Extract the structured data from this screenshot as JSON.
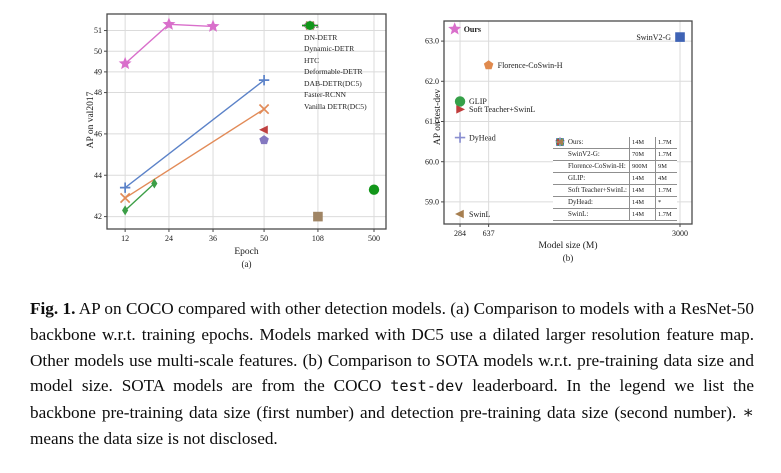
{
  "caption": {
    "label": "Fig. 1.",
    "part1": " AP on COCO compared with other detection models. (a) Comparison to models with a ResNet-50 backbone w.r.t. training epochs. Models marked with DC5 use a dilated larger resolution feature map. Other models use multi-scale features. (b) Comparison to SOTA models w.r.t. pre-training data size and model size. SOTA models are from the COCO ",
    "mono": "test-dev",
    "part2": " leaderboard. In the legend we list the backbone pre-training data size (first number) and detection pre-training data size (second number). ∗ means the data size is not disclosed."
  },
  "chart_data": [
    {
      "type": "line",
      "subplot_label": "(a)",
      "xlabel": "Epoch",
      "ylabel": "AP on val2017",
      "x_ticks": [
        12,
        24,
        36,
        50,
        108,
        500
      ],
      "y_ticks": [
        42,
        44,
        46,
        48,
        49,
        50,
        51
      ],
      "ylim": [
        41.4,
        51.8
      ],
      "grid": true,
      "legend_position": "upper-right",
      "series": [
        {
          "name": "Ours",
          "marker": "star",
          "color": "#D96FCB",
          "points": [
            [
              12,
              49.4
            ],
            [
              24,
              51.3
            ],
            [
              36,
              51.2
            ]
          ]
        },
        {
          "name": "DN-DETR",
          "marker": "plus",
          "color": "#5B82C8",
          "points": [
            [
              12,
              43.4
            ],
            [
              50,
              48.6
            ]
          ]
        },
        {
          "name": "Dynamic-DETR",
          "marker": "x",
          "color": "#E28B58",
          "points": [
            [
              12,
              42.9
            ],
            [
              50,
              47.2
            ]
          ]
        },
        {
          "name": "HTC",
          "marker": "diamond",
          "color": "#3C9E46",
          "points": [
            [
              12,
              42.3
            ],
            [
              20,
              43.6
            ]
          ]
        },
        {
          "name": "Deformable-DETR",
          "marker": "triangle-left",
          "color": "#BF4040",
          "points": [
            [
              50,
              46.2
            ]
          ]
        },
        {
          "name": "DAB-DETR(DC5)",
          "marker": "pentagon",
          "color": "#8478C0",
          "points": [
            [
              50,
              45.7
            ]
          ]
        },
        {
          "name": "Faster-RCNN",
          "marker": "square",
          "color": "#A08565",
          "points": [
            [
              108,
              42.0
            ]
          ]
        },
        {
          "name": "Vanilla DETR(DC5)",
          "marker": "circle",
          "color": "#12961A",
          "points": [
            [
              500,
              43.3
            ]
          ]
        }
      ]
    },
    {
      "type": "scatter",
      "subplot_label": "(b)",
      "xlabel": "Model size (M)",
      "ylabel": "AP on test-dev",
      "x_ticks": [
        {
          "label": "284",
          "v": 284
        },
        {
          "label": "637",
          "v": 637
        },
        {
          "label": "3000",
          "v": 3000
        }
      ],
      "xlim": [
        86,
        3148
      ],
      "y_ticks": [
        {
          "label": "59.0",
          "v": 59
        },
        {
          "label": "60.0",
          "v": 60
        },
        {
          "label": "61.0",
          "v": 61
        },
        {
          "label": "62.0",
          "v": 62
        },
        {
          "label": "63.0",
          "v": 63
        }
      ],
      "ylim": [
        58.45,
        63.5
      ],
      "grid": true,
      "points": [
        {
          "name": "Ours",
          "x": 218,
          "y": 63.3,
          "marker": "star",
          "color": "#D96FCB",
          "bold": true,
          "label_side": "right"
        },
        {
          "name": "SwinV2-G",
          "x": 3000,
          "y": 63.1,
          "marker": "square",
          "color": "#3F63B5",
          "bold": false,
          "label_side": "left"
        },
        {
          "name": "Florence-CoSwin-H",
          "x": 637,
          "y": 62.4,
          "marker": "pentagon",
          "color": "#E08A4E",
          "bold": false,
          "label_side": "right"
        },
        {
          "name": "GLIP",
          "x": 284,
          "y": 61.5,
          "marker": "circle",
          "color": "#36A049",
          "bold": false,
          "label_side": "right"
        },
        {
          "name": "Soft Teacher+SwinL",
          "x": 284,
          "y": 61.3,
          "marker": "triangle-right",
          "color": "#C03C3C",
          "bold": false,
          "label_side": "right"
        },
        {
          "name": "DyHead",
          "x": 284,
          "y": 60.6,
          "marker": "plus",
          "color": "#8A8FD0",
          "bold": false,
          "label_side": "right"
        },
        {
          "name": "SwinL",
          "x": 284,
          "y": 58.7,
          "marker": "triangle-left",
          "color": "#A67E4F",
          "bold": false,
          "label_side": "right"
        }
      ],
      "legend_table": {
        "rows": [
          {
            "label": "Ours:",
            "backbone_pretrain": "14M",
            "detection_pretrain": "1.7M"
          },
          {
            "label": "SwinV2-G:",
            "backbone_pretrain": "70M",
            "detection_pretrain": "1.7M"
          },
          {
            "label": "Florence-CoSwin-H:",
            "backbone_pretrain": "900M",
            "detection_pretrain": "9M"
          },
          {
            "label": "GLIP:",
            "backbone_pretrain": "14M",
            "detection_pretrain": "4M"
          },
          {
            "label": "Soft Teacher+SwinL:",
            "backbone_pretrain": "14M",
            "detection_pretrain": "1.7M"
          },
          {
            "label": "DyHead:",
            "backbone_pretrain": "14M",
            "detection_pretrain": "*"
          },
          {
            "label": "SwinL:",
            "backbone_pretrain": "14M",
            "detection_pretrain": "1.7M"
          }
        ]
      }
    }
  ]
}
